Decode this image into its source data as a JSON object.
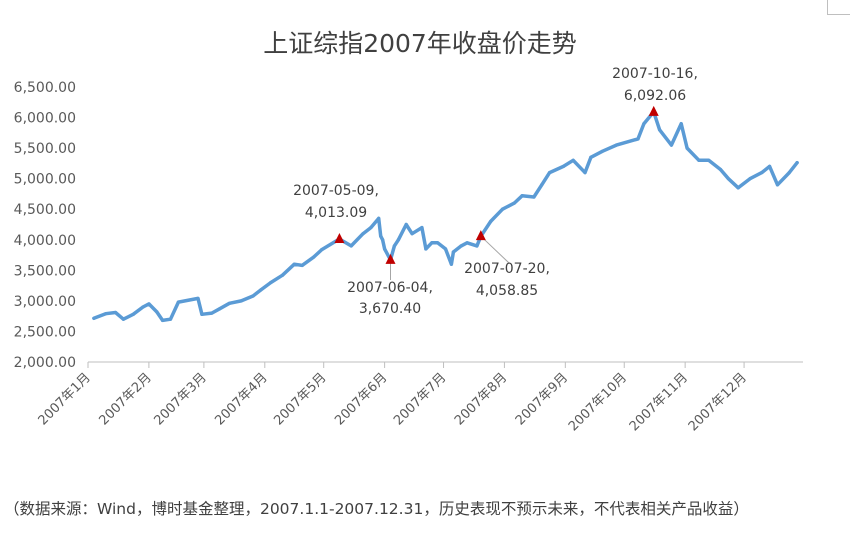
{
  "chart_data": {
    "type": "line",
    "title": "上证综指2007年收盘价走势",
    "xlabel": "",
    "ylabel": "",
    "ylim": [
      2000,
      6500
    ],
    "y_ticks": [
      "6,500.00",
      "6,000.00",
      "5,500.00",
      "5,000.00",
      "4,500.00",
      "4,000.00",
      "3,500.00",
      "3,000.00",
      "2,500.00",
      "2,000.00"
    ],
    "x_ticks": [
      "2007年1月",
      "2007年2月",
      "2007年3月",
      "2007年4月",
      "2007年5月",
      "2007年6月",
      "2007年7月",
      "2007年8月",
      "2007年9月",
      "2007年10月",
      "2007年11月",
      "2007年12月"
    ],
    "grid": false,
    "legend": "none",
    "series_color": "#5B9BD5",
    "marker_color": "#C00000",
    "x": [
      "2007-01-04",
      "2007-01-10",
      "2007-01-15",
      "2007-01-19",
      "2007-01-24",
      "2007-01-29",
      "2007-02-01",
      "2007-02-05",
      "2007-02-08",
      "2007-02-12",
      "2007-02-16",
      "2007-02-26",
      "2007-02-28",
      "2007-03-05",
      "2007-03-09",
      "2007-03-14",
      "2007-03-20",
      "2007-03-26",
      "2007-03-30",
      "2007-04-04",
      "2007-04-10",
      "2007-04-16",
      "2007-04-20",
      "2007-04-26",
      "2007-04-30",
      "2007-05-09",
      "2007-05-15",
      "2007-05-21",
      "2007-05-25",
      "2007-05-29",
      "2007-05-30",
      "2007-05-31",
      "2007-06-01",
      "2007-06-04",
      "2007-06-06",
      "2007-06-08",
      "2007-06-12",
      "2007-06-15",
      "2007-06-20",
      "2007-06-22",
      "2007-06-25",
      "2007-06-28",
      "2007-07-02",
      "2007-07-05",
      "2007-07-06",
      "2007-07-10",
      "2007-07-13",
      "2007-07-18",
      "2007-07-20",
      "2007-07-25",
      "2007-07-31",
      "2007-08-06",
      "2007-08-10",
      "2007-08-16",
      "2007-08-20",
      "2007-08-24",
      "2007-08-31",
      "2007-09-05",
      "2007-09-11",
      "2007-09-14",
      "2007-09-20",
      "2007-09-27",
      "2007-10-08",
      "2007-10-11",
      "2007-10-16",
      "2007-10-19",
      "2007-10-25",
      "2007-10-30",
      "2007-11-02",
      "2007-11-08",
      "2007-11-13",
      "2007-11-19",
      "2007-11-23",
      "2007-11-28",
      "2007-12-04",
      "2007-12-10",
      "2007-12-14",
      "2007-12-18",
      "2007-12-24",
      "2007-12-28"
    ],
    "values": [
      2715,
      2790,
      2810,
      2700,
      2780,
      2900,
      2950,
      2820,
      2680,
      2700,
      2980,
      3040,
      2780,
      2800,
      2870,
      2960,
      3000,
      3080,
      3180,
      3300,
      3420,
      3600,
      3580,
      3720,
      3840,
      4013.09,
      3900,
      4100,
      4200,
      4350,
      4060,
      4000,
      3850,
      3670.4,
      3900,
      4000,
      4250,
      4100,
      4200,
      3850,
      3950,
      3950,
      3850,
      3600,
      3800,
      3900,
      3950,
      3900,
      4058.85,
      4300,
      4500,
      4600,
      4720,
      4700,
      4900,
      5100,
      5200,
      5300,
      5100,
      5350,
      5450,
      5550,
      5650,
      5900,
      6092.06,
      5800,
      5550,
      5900,
      5500,
      5300,
      5300,
      5150,
      5000,
      4850,
      5000,
      5100,
      5200,
      4900,
      5100,
      5262
    ],
    "annotations": [
      {
        "date": "2007-05-09",
        "value": 4013.09,
        "line1": "2007-05-09,",
        "line2": "4,013.09"
      },
      {
        "date": "2007-06-04",
        "value": 3670.4,
        "line1": "2007-06-04,",
        "line2": "3,670.40"
      },
      {
        "date": "2007-07-20",
        "value": 4058.85,
        "line1": "2007-07-20,",
        "line2": "4,058.85"
      },
      {
        "date": "2007-10-16",
        "value": 6092.06,
        "line1": "2007-10-16,",
        "line2": "6,092.06"
      }
    ]
  },
  "footnote": "（数据来源：Wind，博时基金整理，2007.1.1-2007.12.31，历史表现不预示未来，不代表相关产品收益）"
}
